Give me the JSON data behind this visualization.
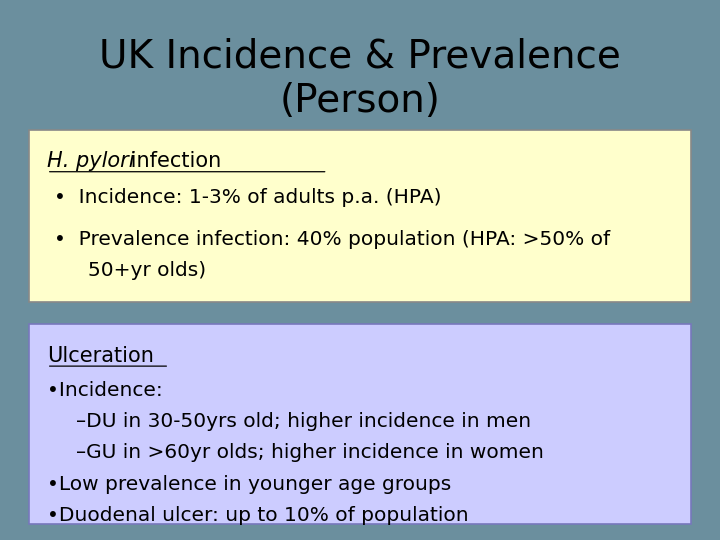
{
  "title_line1": "UK Incidence & Prevalence",
  "title_line2": "(Person)",
  "title_fontsize": 28,
  "background_color": "#6b8f9e",
  "box1_color": "#ffffcc",
  "box2_color": "#ccccff",
  "box1_header_italic": "H. pylori",
  "box1_header_normal": " infection",
  "box1_bullet1": "Incidence: 1-3% of adults p.a. (HPA)",
  "box1_bullet2_line1": "Prevalence infection: 40% population (HPA: >50% of",
  "box1_bullet2_line2": "50+yr olds)",
  "box2_header": "Ulceration",
  "box2_line1": "•Incidence:",
  "box2_line2": "–DU in 30-50yrs old; higher incidence in men",
  "box2_line3": "–GU in >60yr olds; higher incidence in women",
  "box2_line4": "•Low prevalence in younger age groups",
  "box2_line5": "•Duodenal ulcer: up to 10% of population",
  "text_color": "#000000",
  "body_fontsize": 14.5,
  "header_fontsize": 15
}
